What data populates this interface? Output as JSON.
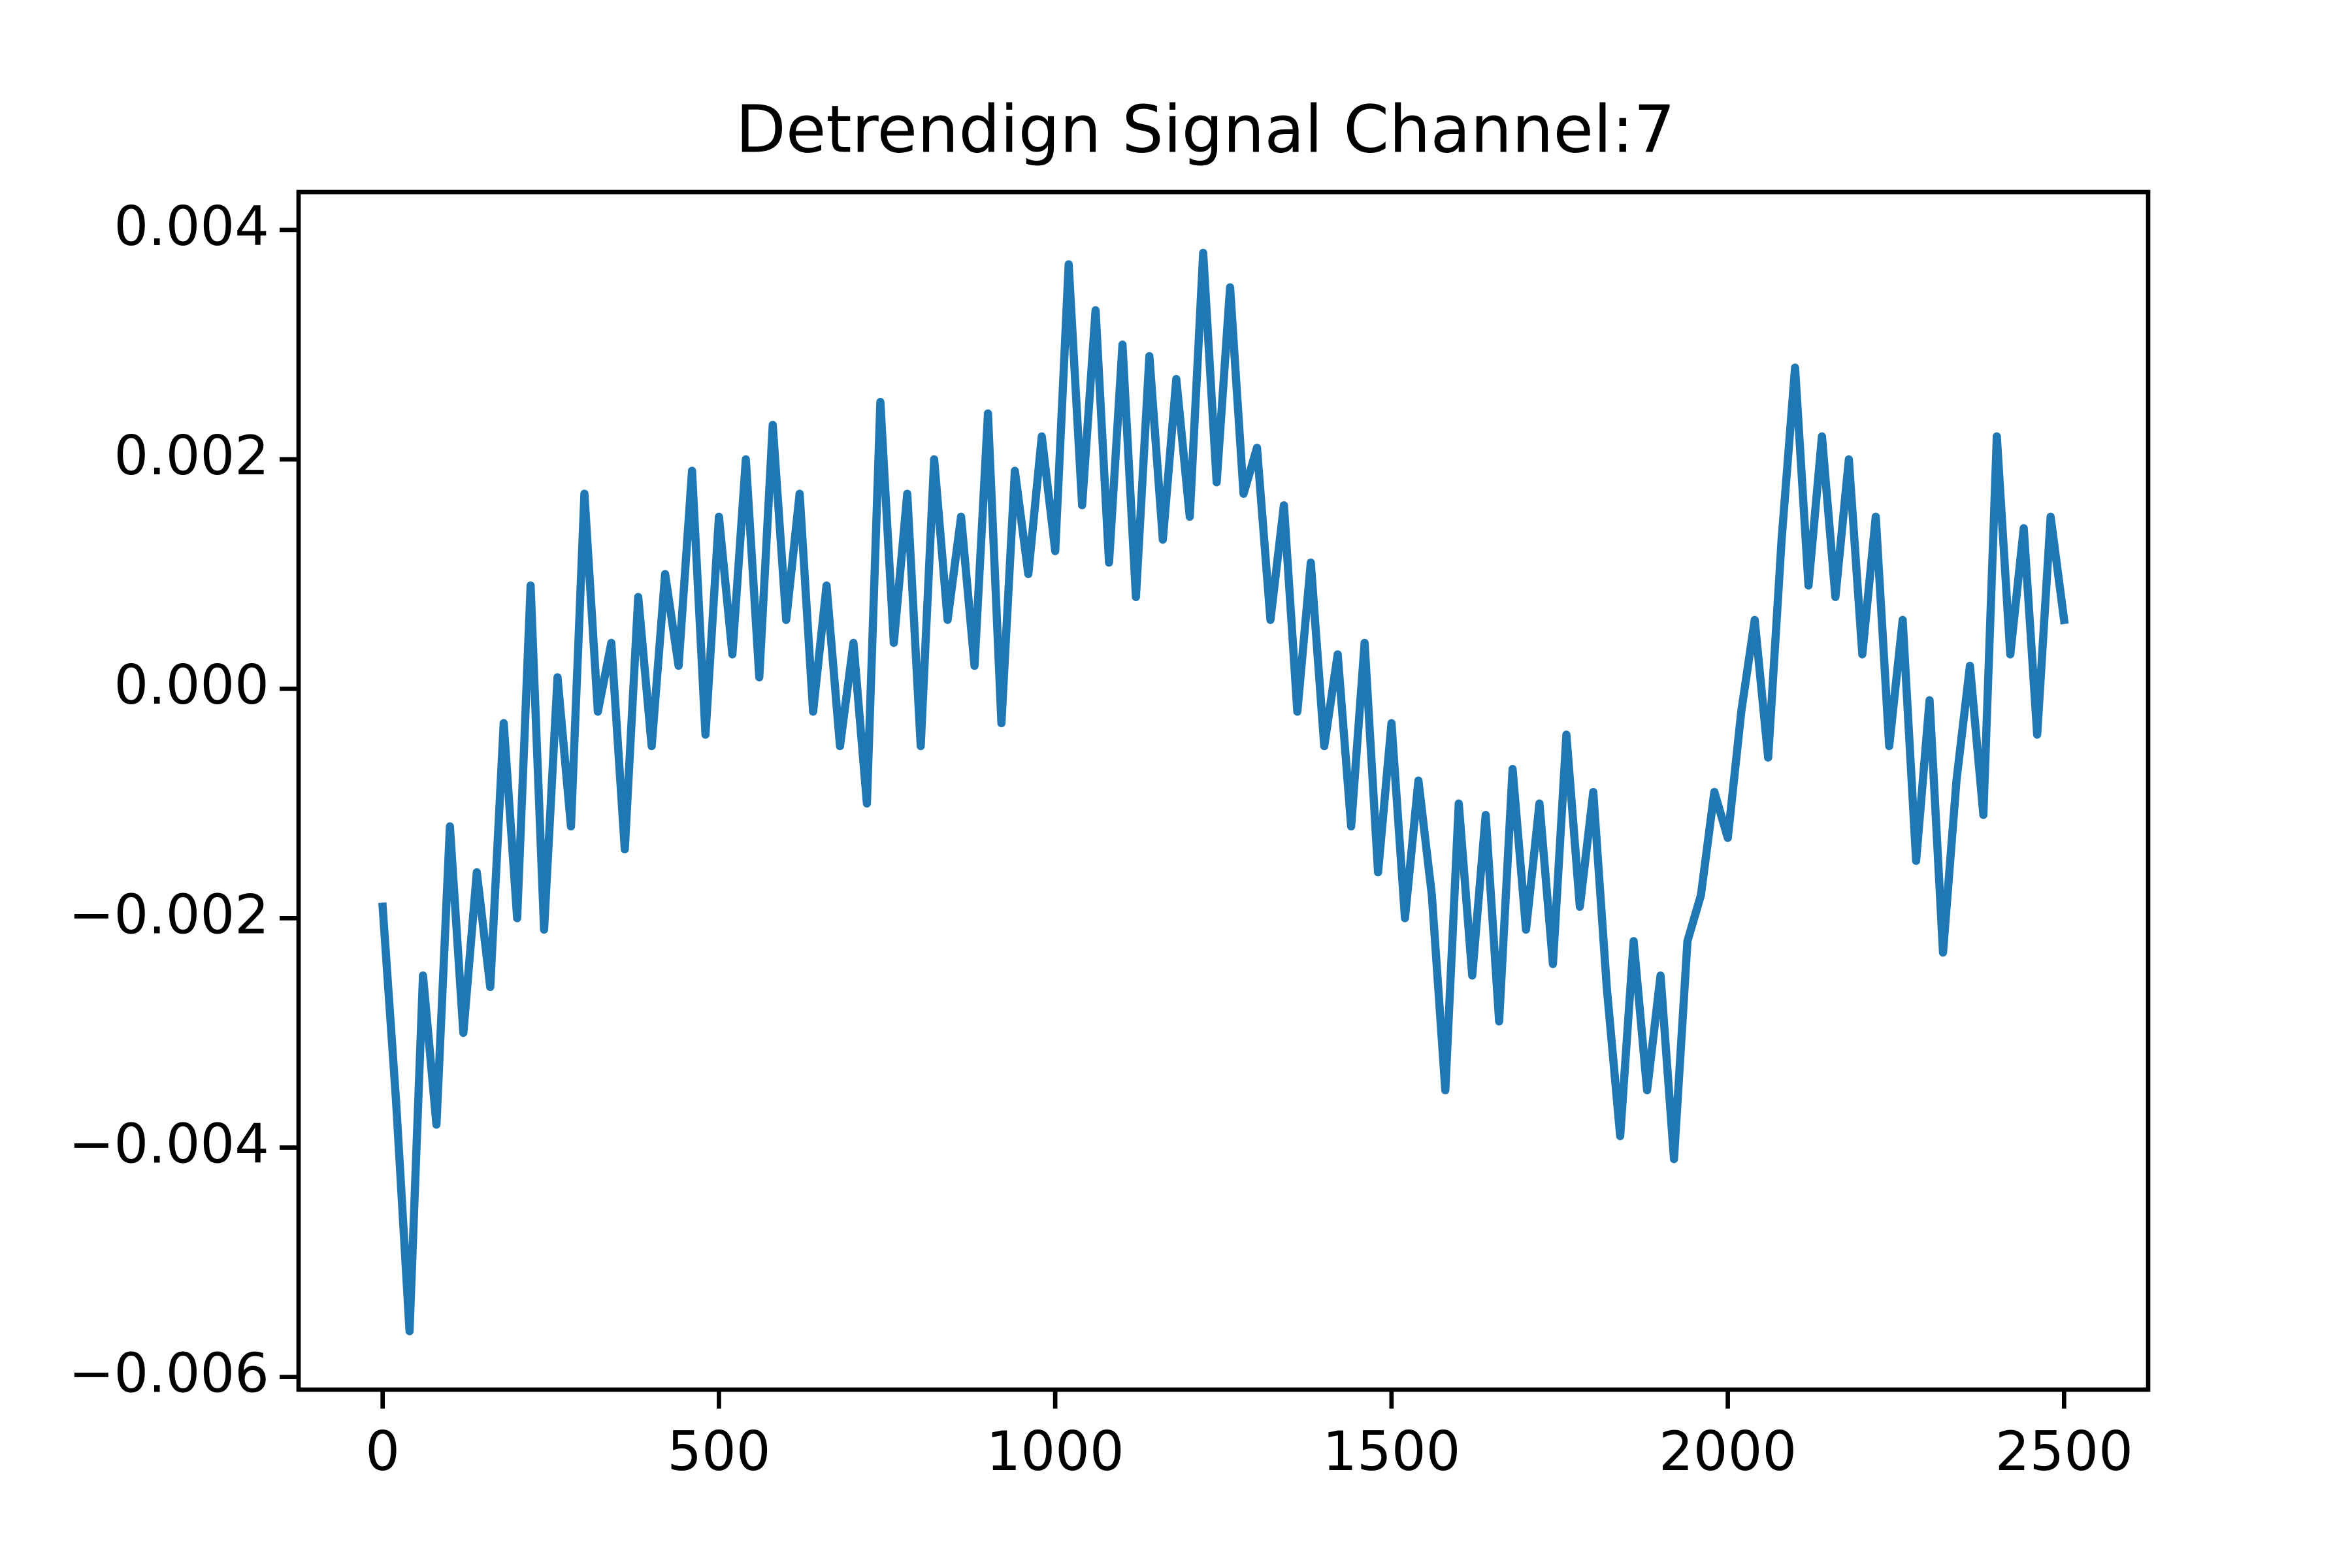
{
  "chart_data": {
    "type": "line",
    "title": "Detrendign Signal Channel:7",
    "x": [
      0,
      20,
      40,
      60,
      80,
      100,
      120,
      140,
      160,
      180,
      200,
      220,
      240,
      260,
      280,
      300,
      320,
      340,
      360,
      380,
      400,
      420,
      440,
      460,
      480,
      500,
      520,
      540,
      560,
      580,
      600,
      620,
      640,
      660,
      680,
      700,
      720,
      740,
      760,
      780,
      800,
      820,
      840,
      860,
      880,
      900,
      920,
      940,
      960,
      980,
      1000,
      1020,
      1040,
      1060,
      1080,
      1100,
      1120,
      1140,
      1160,
      1180,
      1200,
      1220,
      1240,
      1260,
      1280,
      1300,
      1320,
      1340,
      1360,
      1380,
      1400,
      1420,
      1440,
      1460,
      1480,
      1500,
      1520,
      1540,
      1560,
      1580,
      1600,
      1620,
      1640,
      1660,
      1680,
      1700,
      1720,
      1740,
      1760,
      1780,
      1800,
      1820,
      1840,
      1860,
      1880,
      1900,
      1920,
      1940,
      1960,
      1980,
      2000,
      2020,
      2040,
      2060,
      2080,
      2100,
      2120,
      2140,
      2160,
      2180,
      2200,
      2220,
      2240,
      2260,
      2280,
      2300,
      2320,
      2340,
      2360,
      2380,
      2400,
      2420,
      2440,
      2460,
      2480,
      2500
    ],
    "values": [
      -0.0019,
      -0.0036,
      -0.0056,
      -0.0025,
      -0.0038,
      -0.0012,
      -0.003,
      -0.0016,
      -0.0026,
      -0.0003,
      -0.002,
      0.0009,
      -0.0021,
      0.0001,
      -0.0012,
      0.0017,
      -0.0002,
      0.0004,
      -0.0014,
      0.0008,
      -0.0005,
      0.001,
      0.0002,
      0.0019,
      -0.0004,
      0.0015,
      0.0003,
      0.002,
      0.0001,
      0.0023,
      0.0006,
      0.0017,
      -0.0002,
      0.0009,
      -0.0005,
      0.0004,
      -0.001,
      0.0025,
      0.0004,
      0.0017,
      -0.0005,
      0.002,
      0.0006,
      0.0015,
      0.0002,
      0.0024,
      -0.0003,
      0.0019,
      0.001,
      0.0022,
      0.0012,
      0.0037,
      0.0016,
      0.0033,
      0.0011,
      0.003,
      0.0008,
      0.0029,
      0.0013,
      0.0027,
      0.0015,
      0.0038,
      0.0018,
      0.0035,
      0.0017,
      0.0021,
      0.0006,
      0.0016,
      -0.0002,
      0.0011,
      -0.0005,
      0.0003,
      -0.0012,
      0.0004,
      -0.0016,
      -0.0003,
      -0.002,
      -0.0008,
      -0.0018,
      -0.0035,
      -0.001,
      -0.0025,
      -0.0011,
      -0.0029,
      -0.0007,
      -0.0021,
      -0.001,
      -0.0024,
      -0.0004,
      -0.0019,
      -0.0009,
      -0.0026,
      -0.0039,
      -0.0022,
      -0.0035,
      -0.0025,
      -0.0041,
      -0.0022,
      -0.0018,
      -0.0009,
      -0.0013,
      -0.0002,
      0.0006,
      -0.0006,
      0.0013,
      0.0028,
      0.0009,
      0.0022,
      0.0008,
      0.002,
      0.0003,
      0.0015,
      -0.0005,
      0.0006,
      -0.0015,
      -0.0001,
      -0.0023,
      -0.0008,
      0.0002,
      -0.0011,
      0.0022,
      0.0003,
      0.0014,
      -0.0004,
      0.0015,
      0.0006
    ],
    "color": "#1f77b4",
    "xlim": [
      -125,
      2625
    ],
    "xticks": [
      0,
      500,
      1000,
      1500,
      2000,
      2500
    ],
    "ylim": [
      -0.00611,
      0.00433
    ],
    "yticks": [
      {
        "value": -0.006,
        "label": "−0.006"
      },
      {
        "value": -0.004,
        "label": "−0.004"
      },
      {
        "value": -0.002,
        "label": "−0.002"
      },
      {
        "value": 0,
        "label": "0.000"
      },
      {
        "value": 0.002,
        "label": "0.002"
      },
      {
        "value": 0.004,
        "label": "0.004"
      }
    ],
    "grid": false
  }
}
